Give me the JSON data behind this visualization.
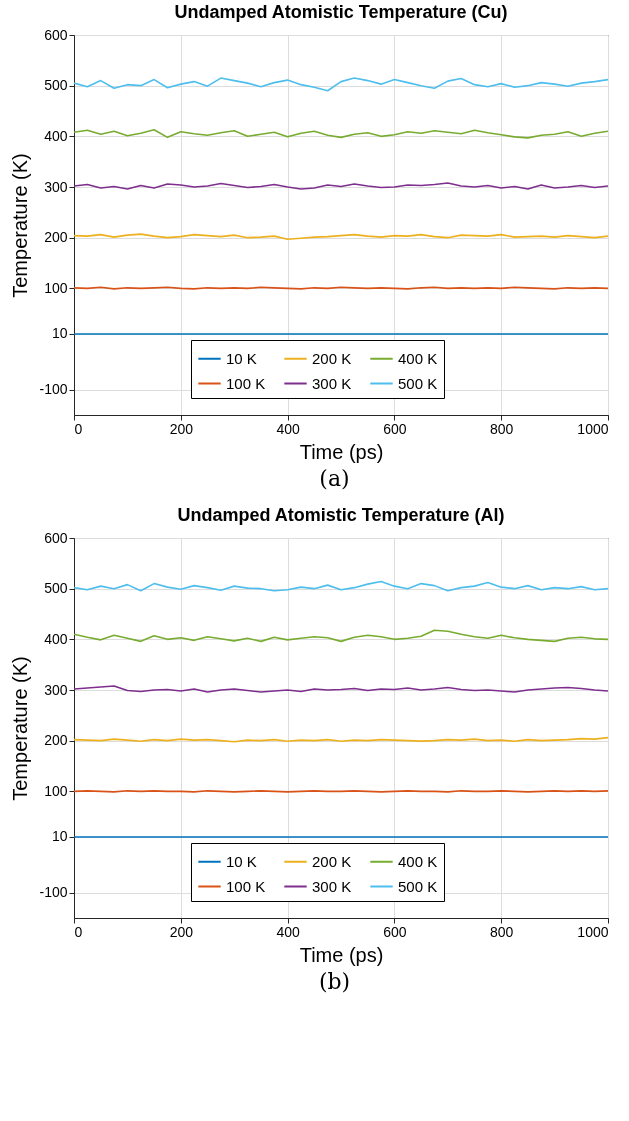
{
  "chart_data": [
    {
      "type": "line",
      "title": "Undamped Atomistic Temperature (Cu)",
      "xlabel": "Time (ps)",
      "ylabel": "Temperature (K)",
      "annotations": [
        "(a)"
      ],
      "x": [
        0,
        25,
        50,
        75,
        100,
        125,
        150,
        175,
        200,
        225,
        250,
        275,
        300,
        325,
        350,
        375,
        400,
        425,
        450,
        475,
        500,
        525,
        550,
        575,
        600,
        625,
        650,
        675,
        700,
        725,
        750,
        775,
        800,
        825,
        850,
        875,
        900,
        925,
        950,
        975,
        1000
      ],
      "xlim": [
        0,
        1000
      ],
      "xticks": [
        0,
        200,
        400,
        600,
        800,
        1000
      ],
      "ylim": [
        -150,
        600
      ],
      "yticks": [
        -100,
        10,
        100,
        200,
        300,
        400,
        500,
        600
      ],
      "grid": true,
      "legend": "bottom",
      "series": [
        {
          "name": "10 K",
          "color": "#0072bd",
          "values": [
            10,
            10,
            10,
            10,
            10,
            10,
            10,
            10,
            10,
            10,
            10,
            10,
            10,
            10,
            10,
            10,
            10,
            10,
            10,
            10,
            10,
            10,
            10,
            10,
            10,
            10,
            10,
            10,
            10,
            10,
            10,
            10,
            10,
            10,
            10,
            10,
            10,
            10,
            10,
            10,
            10
          ]
        },
        {
          "name": "100 K",
          "color": "#d95319",
          "values": [
            101,
            100,
            102,
            99,
            101,
            100,
            101,
            102,
            100,
            99,
            101,
            100,
            101,
            100,
            102,
            101,
            100,
            99,
            101,
            100,
            102,
            101,
            100,
            101,
            100,
            99,
            101,
            102,
            100,
            101,
            100,
            101,
            100,
            102,
            101,
            100,
            99,
            101,
            100,
            101,
            100
          ]
        },
        {
          "name": "200 K",
          "color": "#edb120",
          "values": [
            204,
            203,
            206,
            201,
            205,
            207,
            203,
            200,
            202,
            206,
            204,
            202,
            205,
            200,
            201,
            203,
            197,
            199,
            201,
            202,
            204,
            206,
            203,
            201,
            204,
            203,
            206,
            202,
            200,
            205,
            204,
            203,
            206,
            201,
            202,
            203,
            201,
            204,
            202,
            200,
            203
          ]
        },
        {
          "name": "300 K",
          "color": "#7e2f8e",
          "values": [
            302,
            305,
            298,
            301,
            296,
            303,
            298,
            306,
            304,
            300,
            302,
            307,
            303,
            299,
            301,
            305,
            300,
            296,
            298,
            304,
            301,
            306,
            302,
            299,
            300,
            304,
            303,
            305,
            308,
            302,
            300,
            303,
            298,
            301,
            296,
            304,
            298,
            300,
            303,
            299,
            302
          ]
        },
        {
          "name": "400 K",
          "color": "#77ac30",
          "values": [
            408,
            412,
            404,
            410,
            401,
            406,
            413,
            398,
            409,
            405,
            402,
            407,
            411,
            400,
            404,
            408,
            399,
            406,
            410,
            402,
            398,
            404,
            407,
            400,
            403,
            409,
            406,
            411,
            408,
            405,
            412,
            407,
            403,
            399,
            397,
            402,
            404,
            409,
            400,
            406,
            410
          ]
        },
        {
          "name": "500 K",
          "color": "#4dbeee",
          "values": [
            505,
            498,
            510,
            495,
            502,
            500,
            512,
            496,
            503,
            508,
            499,
            515,
            510,
            505,
            498,
            506,
            511,
            502,
            497,
            490,
            508,
            515,
            510,
            503,
            512,
            506,
            500,
            495,
            509,
            514,
            502,
            498,
            504,
            497,
            500,
            506,
            503,
            499,
            505,
            508,
            512
          ]
        }
      ]
    },
    {
      "type": "line",
      "title": "Undamped Atomistic Temperature (Al)",
      "xlabel": "Time (ps)",
      "ylabel": "Temperature (K)",
      "annotations": [
        "(b)"
      ],
      "x": [
        0,
        25,
        50,
        75,
        100,
        125,
        150,
        175,
        200,
        225,
        250,
        275,
        300,
        325,
        350,
        375,
        400,
        425,
        450,
        475,
        500,
        525,
        550,
        575,
        600,
        625,
        650,
        675,
        700,
        725,
        750,
        775,
        800,
        825,
        850,
        875,
        900,
        925,
        950,
        975,
        1000
      ],
      "xlim": [
        0,
        1000
      ],
      "xticks": [
        0,
        200,
        400,
        600,
        800,
        1000
      ],
      "ylim": [
        -150,
        600
      ],
      "yticks": [
        -100,
        10,
        100,
        200,
        300,
        400,
        500,
        600
      ],
      "grid": true,
      "legend": "bottom",
      "series": [
        {
          "name": "10 K",
          "color": "#0072bd",
          "values": [
            10,
            10,
            10,
            10,
            10,
            10,
            10,
            10,
            10,
            10,
            10,
            10,
            10,
            10,
            10,
            10,
            10,
            10,
            10,
            10,
            10,
            10,
            10,
            10,
            10,
            10,
            10,
            10,
            10,
            10,
            10,
            10,
            10,
            10,
            10,
            10,
            10,
            10,
            10,
            10,
            10
          ]
        },
        {
          "name": "100 K",
          "color": "#d95319",
          "values": [
            100,
            101,
            100,
            99,
            101,
            100,
            101,
            100,
            100,
            99,
            101,
            100,
            99,
            100,
            101,
            100,
            99,
            100,
            101,
            100,
            100,
            101,
            100,
            99,
            100,
            101,
            100,
            100,
            99,
            101,
            100,
            100,
            101,
            100,
            99,
            100,
            101,
            100,
            101,
            100,
            101
          ]
        },
        {
          "name": "200 K",
          "color": "#edb120",
          "values": [
            202,
            201,
            200,
            203,
            201,
            199,
            202,
            200,
            203,
            201,
            202,
            200,
            198,
            201,
            200,
            202,
            199,
            201,
            200,
            202,
            199,
            201,
            200,
            202,
            201,
            200,
            199,
            200,
            202,
            201,
            203,
            200,
            201,
            199,
            202,
            200,
            201,
            202,
            204,
            203,
            206
          ]
        },
        {
          "name": "300 K",
          "color": "#7e2f8e",
          "values": [
            302,
            304,
            306,
            308,
            299,
            297,
            300,
            301,
            298,
            302,
            296,
            300,
            302,
            299,
            296,
            298,
            300,
            297,
            302,
            300,
            301,
            303,
            299,
            302,
            301,
            304,
            300,
            302,
            305,
            301,
            299,
            300,
            298,
            296,
            300,
            302,
            304,
            305,
            303,
            300,
            298
          ]
        },
        {
          "name": "400 K",
          "color": "#77ac30",
          "values": [
            410,
            404,
            399,
            408,
            402,
            396,
            407,
            400,
            403,
            398,
            405,
            401,
            397,
            402,
            396,
            404,
            399,
            402,
            405,
            403,
            396,
            404,
            408,
            405,
            400,
            402,
            406,
            418,
            416,
            410,
            405,
            402,
            408,
            403,
            400,
            398,
            396,
            402,
            404,
            401,
            400
          ]
        },
        {
          "name": "500 K",
          "color": "#4dbeee",
          "values": [
            502,
            498,
            505,
            500,
            508,
            496,
            510,
            503,
            499,
            506,
            502,
            497,
            505,
            501,
            500,
            496,
            498,
            503,
            500,
            507,
            498,
            502,
            509,
            514,
            505,
            500,
            510,
            506,
            496,
            502,
            505,
            512,
            503,
            500,
            506,
            498,
            502,
            500,
            504,
            498,
            500
          ]
        }
      ]
    }
  ]
}
